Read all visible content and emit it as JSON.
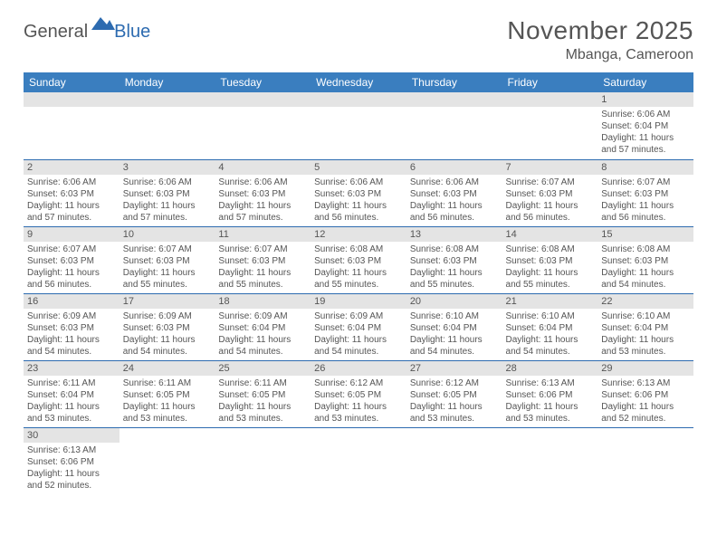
{
  "brand": {
    "text_general": "General",
    "text_blue": "Blue",
    "icon_color": "#2d6bb0"
  },
  "header": {
    "title": "November 2025",
    "location": "Mbanga, Cameroon"
  },
  "colors": {
    "header_bg": "#3a7ebf",
    "header_text": "#ffffff",
    "cell_border": "#2d6bb0",
    "daynum_bg": "#e4e4e4",
    "text": "#555555"
  },
  "daysOfWeek": [
    "Sunday",
    "Monday",
    "Tuesday",
    "Wednesday",
    "Thursday",
    "Friday",
    "Saturday"
  ],
  "weeks": [
    [
      {
        "num": "",
        "lines": []
      },
      {
        "num": "",
        "lines": []
      },
      {
        "num": "",
        "lines": []
      },
      {
        "num": "",
        "lines": []
      },
      {
        "num": "",
        "lines": []
      },
      {
        "num": "",
        "lines": []
      },
      {
        "num": "1",
        "lines": [
          "Sunrise: 6:06 AM",
          "Sunset: 6:04 PM",
          "Daylight: 11 hours",
          "and 57 minutes."
        ]
      }
    ],
    [
      {
        "num": "2",
        "lines": [
          "Sunrise: 6:06 AM",
          "Sunset: 6:03 PM",
          "Daylight: 11 hours",
          "and 57 minutes."
        ]
      },
      {
        "num": "3",
        "lines": [
          "Sunrise: 6:06 AM",
          "Sunset: 6:03 PM",
          "Daylight: 11 hours",
          "and 57 minutes."
        ]
      },
      {
        "num": "4",
        "lines": [
          "Sunrise: 6:06 AM",
          "Sunset: 6:03 PM",
          "Daylight: 11 hours",
          "and 57 minutes."
        ]
      },
      {
        "num": "5",
        "lines": [
          "Sunrise: 6:06 AM",
          "Sunset: 6:03 PM",
          "Daylight: 11 hours",
          "and 56 minutes."
        ]
      },
      {
        "num": "6",
        "lines": [
          "Sunrise: 6:06 AM",
          "Sunset: 6:03 PM",
          "Daylight: 11 hours",
          "and 56 minutes."
        ]
      },
      {
        "num": "7",
        "lines": [
          "Sunrise: 6:07 AM",
          "Sunset: 6:03 PM",
          "Daylight: 11 hours",
          "and 56 minutes."
        ]
      },
      {
        "num": "8",
        "lines": [
          "Sunrise: 6:07 AM",
          "Sunset: 6:03 PM",
          "Daylight: 11 hours",
          "and 56 minutes."
        ]
      }
    ],
    [
      {
        "num": "9",
        "lines": [
          "Sunrise: 6:07 AM",
          "Sunset: 6:03 PM",
          "Daylight: 11 hours",
          "and 56 minutes."
        ]
      },
      {
        "num": "10",
        "lines": [
          "Sunrise: 6:07 AM",
          "Sunset: 6:03 PM",
          "Daylight: 11 hours",
          "and 55 minutes."
        ]
      },
      {
        "num": "11",
        "lines": [
          "Sunrise: 6:07 AM",
          "Sunset: 6:03 PM",
          "Daylight: 11 hours",
          "and 55 minutes."
        ]
      },
      {
        "num": "12",
        "lines": [
          "Sunrise: 6:08 AM",
          "Sunset: 6:03 PM",
          "Daylight: 11 hours",
          "and 55 minutes."
        ]
      },
      {
        "num": "13",
        "lines": [
          "Sunrise: 6:08 AM",
          "Sunset: 6:03 PM",
          "Daylight: 11 hours",
          "and 55 minutes."
        ]
      },
      {
        "num": "14",
        "lines": [
          "Sunrise: 6:08 AM",
          "Sunset: 6:03 PM",
          "Daylight: 11 hours",
          "and 55 minutes."
        ]
      },
      {
        "num": "15",
        "lines": [
          "Sunrise: 6:08 AM",
          "Sunset: 6:03 PM",
          "Daylight: 11 hours",
          "and 54 minutes."
        ]
      }
    ],
    [
      {
        "num": "16",
        "lines": [
          "Sunrise: 6:09 AM",
          "Sunset: 6:03 PM",
          "Daylight: 11 hours",
          "and 54 minutes."
        ]
      },
      {
        "num": "17",
        "lines": [
          "Sunrise: 6:09 AM",
          "Sunset: 6:03 PM",
          "Daylight: 11 hours",
          "and 54 minutes."
        ]
      },
      {
        "num": "18",
        "lines": [
          "Sunrise: 6:09 AM",
          "Sunset: 6:04 PM",
          "Daylight: 11 hours",
          "and 54 minutes."
        ]
      },
      {
        "num": "19",
        "lines": [
          "Sunrise: 6:09 AM",
          "Sunset: 6:04 PM",
          "Daylight: 11 hours",
          "and 54 minutes."
        ]
      },
      {
        "num": "20",
        "lines": [
          "Sunrise: 6:10 AM",
          "Sunset: 6:04 PM",
          "Daylight: 11 hours",
          "and 54 minutes."
        ]
      },
      {
        "num": "21",
        "lines": [
          "Sunrise: 6:10 AM",
          "Sunset: 6:04 PM",
          "Daylight: 11 hours",
          "and 54 minutes."
        ]
      },
      {
        "num": "22",
        "lines": [
          "Sunrise: 6:10 AM",
          "Sunset: 6:04 PM",
          "Daylight: 11 hours",
          "and 53 minutes."
        ]
      }
    ],
    [
      {
        "num": "23",
        "lines": [
          "Sunrise: 6:11 AM",
          "Sunset: 6:04 PM",
          "Daylight: 11 hours",
          "and 53 minutes."
        ]
      },
      {
        "num": "24",
        "lines": [
          "Sunrise: 6:11 AM",
          "Sunset: 6:05 PM",
          "Daylight: 11 hours",
          "and 53 minutes."
        ]
      },
      {
        "num": "25",
        "lines": [
          "Sunrise: 6:11 AM",
          "Sunset: 6:05 PM",
          "Daylight: 11 hours",
          "and 53 minutes."
        ]
      },
      {
        "num": "26",
        "lines": [
          "Sunrise: 6:12 AM",
          "Sunset: 6:05 PM",
          "Daylight: 11 hours",
          "and 53 minutes."
        ]
      },
      {
        "num": "27",
        "lines": [
          "Sunrise: 6:12 AM",
          "Sunset: 6:05 PM",
          "Daylight: 11 hours",
          "and 53 minutes."
        ]
      },
      {
        "num": "28",
        "lines": [
          "Sunrise: 6:13 AM",
          "Sunset: 6:06 PM",
          "Daylight: 11 hours",
          "and 53 minutes."
        ]
      },
      {
        "num": "29",
        "lines": [
          "Sunrise: 6:13 AM",
          "Sunset: 6:06 PM",
          "Daylight: 11 hours",
          "and 52 minutes."
        ]
      }
    ],
    [
      {
        "num": "30",
        "lines": [
          "Sunrise: 6:13 AM",
          "Sunset: 6:06 PM",
          "Daylight: 11 hours",
          "and 52 minutes."
        ]
      },
      {
        "num": "",
        "lines": []
      },
      {
        "num": "",
        "lines": []
      },
      {
        "num": "",
        "lines": []
      },
      {
        "num": "",
        "lines": []
      },
      {
        "num": "",
        "lines": []
      },
      {
        "num": "",
        "lines": []
      }
    ]
  ]
}
